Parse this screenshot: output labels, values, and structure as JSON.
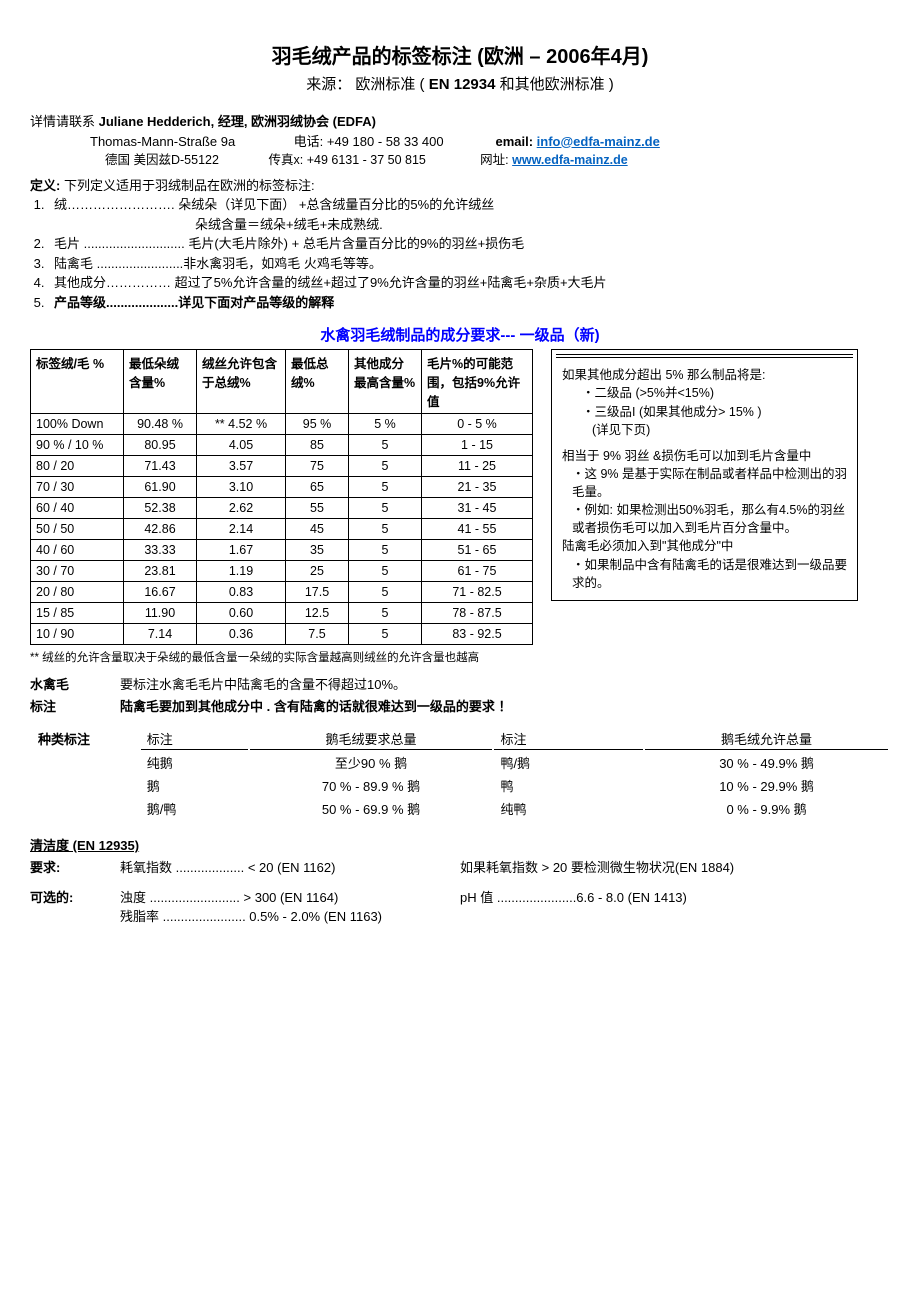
{
  "title": "羽毛绒产品的标签标注  (欧洲  – 2006年4月)",
  "subtitle_prefix": "来源：   欧洲标准  ( ",
  "subtitle_bold": "EN 12934",
  "subtitle_suffix": "  和其他欧洲标准  )",
  "contact": {
    "line1_prefix": "详情请联系 ",
    "line1_bold": "Juliane Hedderich,  经理,  欧洲羽绒协会  (EDFA)",
    "address": "Thomas-Mann-Straße 9a",
    "phone_label": "电话: ",
    "phone": "+49 180 - 58 33 400",
    "email_label": "email: ",
    "email": "info@edfa-mainz.de",
    "line3_prefix": "德国  美因兹D-55122",
    "fax_label": "传真x: ",
    "fax": "+49 6131 - 37 50 815",
    "web_label": "网址: ",
    "web": "www.edfa-mainz.de"
  },
  "definitions": {
    "header_bold": "定义:",
    "header_text": "    下列定义适用于羽绒制品在欧洲的标签标注:",
    "items": [
      "绒……………………. 朵绒朵（详见下面）  +总含绒量百分比的5%的允许绒丝",
      "毛片 ............................ 毛片(大毛片除外) +  总毛片含量百分比的9%的羽丝+损伤毛",
      "陆禽毛 ........................非水禽羽毛，如鸡毛  火鸡毛等等。",
      "其他成分…………… 超过了5%允许含量的绒丝+超过了9%允许含量的羽丝+陆禽毛+杂质+大毛片",
      "产品等级....................详见下面对产品等级的解释"
    ],
    "line1_extra": "朵绒含量＝绒朵+绒毛+未成熟绒."
  },
  "section_title": "水禽羽毛绒制品的成分要求---  一级品（新)",
  "table": {
    "headers": [
      "标签绒/毛  %",
      "最低朵绒含量%",
      "绒丝允许包含于总绒%",
      "最低总绒%",
      "其他成分最高含量%",
      "毛片%的可能范围，包括9%允许值"
    ],
    "col_widths": [
      "82",
      "62",
      "78",
      "52",
      "62",
      "100"
    ],
    "rows": [
      [
        "100% Down",
        "90.48 %",
        "** 4.52 %",
        "95 %",
        "5 %",
        "0 - 5 %"
      ],
      [
        "90 % / 10 %",
        "80.95",
        "4.05",
        "85",
        "5",
        "1 - 15"
      ],
      [
        "80 / 20",
        "71.43",
        "3.57",
        "75",
        "5",
        "11 - 25"
      ],
      [
        "70 / 30",
        "61.90",
        "3.10",
        "65",
        "5",
        "21 - 35"
      ],
      [
        "60 / 40",
        "52.38",
        "2.62",
        "55",
        "5",
        "31 - 45"
      ],
      [
        "50 / 50",
        "42.86",
        "2.14",
        "45",
        "5",
        "41 - 55"
      ],
      [
        "40 / 60",
        "33.33",
        "1.67",
        "35",
        "5",
        "51 - 65"
      ],
      [
        "30 / 70",
        "23.81",
        "1.19",
        "25",
        "5",
        "61 - 75"
      ],
      [
        "20 / 80",
        "16.67",
        "0.83",
        "17.5",
        "5",
        "71 - 82.5"
      ],
      [
        "15 / 85",
        "11.90",
        "0.60",
        "12.5",
        "5",
        "78 - 87.5"
      ],
      [
        "10 / 90",
        "7.14",
        "0.36",
        "7.5",
        "5",
        "83 - 92.5"
      ]
    ]
  },
  "footnote": "**  绒丝的允许含量取决于朵绒的最低含量一朵绒的实际含量越高则绒丝的允许含量也越高",
  "notebox": {
    "l1": "如果其他成分超出  5%  那么制品将是:",
    "l2": "・二级品  (>5%并<15%)",
    "l3": "・三级品I (如果其他成分> 15% )",
    "l4": "(详见下页)",
    "l5": "相当于  9%  羽丝 &损伤毛可以加到毛片含量中",
    "l6": "・这 9%  是基于实际在制品或者样品中检测出的羽毛量。",
    "l7": "・例如:  如果检测出50%羽毛，那么有4.5%的羽丝或者损伤毛可以加入到毛片百分含量中。",
    "l8": "陆禽毛必须加入到\"其他成分\"中",
    "l9": "・如果制品中含有陆禽毛的话是很难达到一级品要求的。"
  },
  "waterfowl": {
    "label1": "水禽毛",
    "text1": "要标注水禽毛毛片中陆禽毛的含量不得超过10%。",
    "label2": "标注",
    "text2": "陆禽毛要加到其他成分中  . 含有陆禽的话就很难达到一级品的要求  ！"
  },
  "species": {
    "col_labels": [
      "种类标注",
      "标注",
      "鹅毛绒要求总量",
      "标注",
      "鹅毛绒允许总量"
    ],
    "rows": [
      [
        "",
        "纯鹅",
        "至少90 %  鹅",
        "鸭/鹅",
        "30 % - 49.9%  鹅"
      ],
      [
        "",
        "鹅",
        "70 % - 89.9 %  鹅",
        "鸭",
        "10 % - 29.9%  鹅"
      ],
      [
        "",
        "鹅/鸭",
        "50 % - 69.9 %  鹅",
        "纯鸭",
        "0 % -  9.9%  鹅"
      ]
    ]
  },
  "cleanliness": {
    "title": "清洁度  (EN 12935)",
    "req_label": "要求:",
    "req_c1": "耗氧指数 ................... < 20 (EN 1162)",
    "req_c2": "如果耗氧指数  > 20  要检测微生物状况(EN 1884)",
    "opt_label": "可选的:",
    "opt_c1a": "浊度  ......................... > 300 (EN 1164)",
    "opt_c2": "pH  值  ......................6.6 - 8.0 (EN 1413)",
    "opt_c1b": "残脂率 ....................... 0.5% - 2.0% (EN 1163)"
  }
}
